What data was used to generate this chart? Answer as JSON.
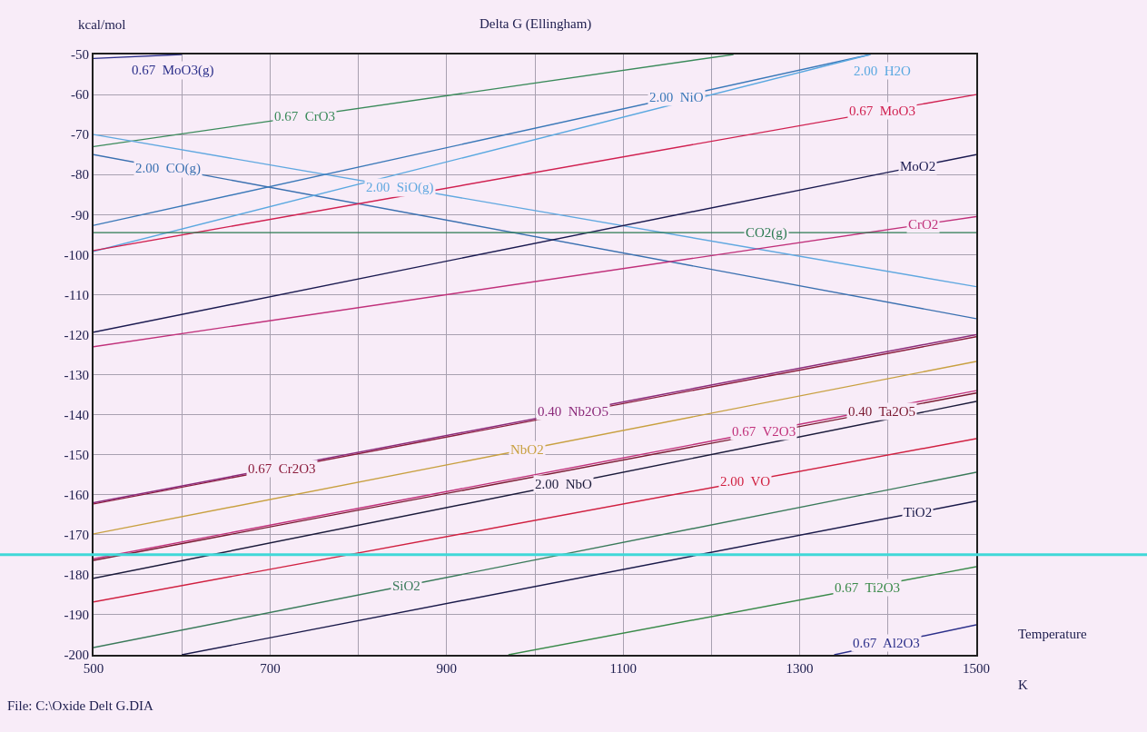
{
  "chart_data": {
    "type": "line",
    "title": "Delta G (Ellingham)",
    "ylabel": "kcal/mol",
    "xlabel": "Temperature",
    "annotations": [
      "K",
      "File: C:\\Oxide Delt G.DIA"
    ],
    "xlim": [
      500,
      1500
    ],
    "ylim": [
      -200,
      -50
    ],
    "xticks": [
      500,
      {
        "value": 600,
        "label": null
      },
      700,
      {
        "value": 800,
        "label": null
      },
      900,
      {
        "value": 1000,
        "label": null
      },
      1100,
      {
        "value": 1200,
        "label": null
      },
      1300,
      {
        "value": 1400,
        "label": null
      },
      1500
    ],
    "yticks": [
      -50,
      -60,
      -70,
      -80,
      -90,
      -100,
      -110,
      -120,
      -130,
      -140,
      -150,
      -160,
      -170,
      -180,
      -190,
      -200
    ],
    "grid": true,
    "legend": false,
    "marker": "none",
    "line_style": "solid",
    "ref_lines": [
      {
        "axis": "y",
        "value": -175,
        "color": "#40d8d8"
      }
    ],
    "series": [
      {
        "name": "0.67  MoO3(g)",
        "color": "#2b2f8a",
        "x": [
          500,
          600
        ],
        "values": [
          -51,
          -50
        ]
      },
      {
        "name": "0.67  CrO3",
        "color": "#3a8a5a",
        "x": [
          500,
          1225
        ],
        "values": [
          -73,
          -50
        ]
      },
      {
        "name": "2.00  CO(g)",
        "color": "#3a70b0",
        "x": [
          500,
          1500
        ],
        "values": [
          -75,
          -116
        ]
      },
      {
        "name": "2.00  SiO(g)",
        "color": "#60a8e0",
        "x": [
          500,
          1500
        ],
        "values": [
          -70,
          -108
        ]
      },
      {
        "name": "2.00  NiO",
        "color": "#3a78b8",
        "x": [
          500,
          1380
        ],
        "values": [
          -92.7,
          -50
        ]
      },
      {
        "name": "2.00  H2O",
        "color": "#5aa8e0",
        "x": [
          500,
          1380
        ],
        "values": [
          -99.2,
          -50
        ]
      },
      {
        "name": "0.67  MoO3",
        "color": "#d02050",
        "x": [
          500,
          1500
        ],
        "values": [
          -99,
          -60
        ]
      },
      {
        "name": "MoO2",
        "color": "#1a1a50",
        "x": [
          500,
          1500
        ],
        "values": [
          -119.4,
          -75
        ]
      },
      {
        "name": "CrO2",
        "color": "#c0307a",
        "x": [
          500,
          1500
        ],
        "values": [
          -123,
          -90.5
        ]
      },
      {
        "name": "CO2(g)",
        "color": "#2a7a50",
        "x": [
          500,
          1500
        ],
        "values": [
          -94.5,
          -94.5
        ]
      },
      {
        "name": "0.67  Cr2O3",
        "color": "#8b1c3c",
        "x": [
          500,
          1500
        ],
        "values": [
          -162.3,
          -120.5
        ]
      },
      {
        "name": "0.40  Nb2O5",
        "color": "#8b2a7a",
        "x": [
          500,
          1500
        ],
        "values": [
          -162,
          -120
        ]
      },
      {
        "name": "NbO2",
        "color": "#c8a040",
        "x": [
          500,
          1500
        ],
        "values": [
          -169.8,
          -126.7
        ]
      },
      {
        "name": "0.40  Ta2O5",
        "color": "#7a1830",
        "x": [
          500,
          1500
        ],
        "values": [
          -176.4,
          -134.6
        ]
      },
      {
        "name": "0.67  V2O3",
        "color": "#c0307a",
        "x": [
          500,
          1500
        ],
        "values": [
          -176,
          -134
        ]
      },
      {
        "name": "2.00  NbO",
        "color": "#1a1a3a",
        "x": [
          500,
          1500
        ],
        "values": [
          -180.9,
          -136.7
        ]
      },
      {
        "name": "2.00  VO",
        "color": "#d02040",
        "x": [
          500,
          1500
        ],
        "values": [
          -186.8,
          -146
        ]
      },
      {
        "name": "SiO2",
        "color": "#3a7a5a",
        "x": [
          500,
          1500
        ],
        "values": [
          -198.2,
          -154.4
        ]
      },
      {
        "name": "TiO2",
        "color": "#1a1a4a",
        "x": [
          600,
          1500
        ],
        "values": [
          -200,
          -161.6
        ]
      },
      {
        "name": "0.67  Ti2O3",
        "color": "#3a8a4a",
        "x": [
          970,
          1500
        ],
        "values": [
          -200,
          -178
        ]
      },
      {
        "name": "0.67  Al2O3",
        "color": "#2b2f8a",
        "x": [
          1339,
          1500
        ],
        "values": [
          -200,
          -192.5
        ]
      }
    ]
  }
}
